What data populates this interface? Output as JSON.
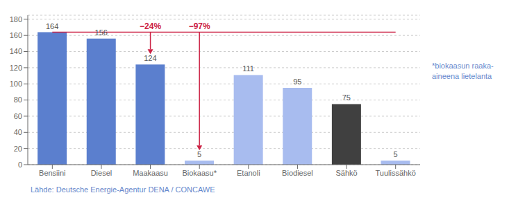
{
  "chart_data": {
    "type": "bar",
    "categories": [
      "Bensiini",
      "Diesel",
      "Maakaasu",
      "Biokaasu*",
      "Etanoli",
      "Biodiesel",
      "Sähkö",
      "Tuulissähkö"
    ],
    "values": [
      164,
      156,
      124,
      5,
      111,
      95,
      75,
      5
    ],
    "colors": [
      "#5b7fce",
      "#5b7fce",
      "#5b7fce",
      "#a8bcef",
      "#a8bcef",
      "#a8bcef",
      "#404040",
      "#a8bcef"
    ],
    "ylim": [
      0,
      185
    ],
    "yticks": [
      0,
      20,
      40,
      60,
      80,
      100,
      120,
      140,
      160,
      180
    ],
    "grid": true,
    "data_labels": true,
    "reference_line": {
      "y": 164,
      "color": "#cc2244"
    },
    "annotations": [
      {
        "text": "−24%",
        "category": "Maakaasu",
        "from": 164,
        "to": 124,
        "color": "#cc2244"
      },
      {
        "text": "−97%",
        "category": "Biokaasu*",
        "from": 164,
        "to": 5,
        "color": "#cc2244"
      }
    ],
    "footnote": "*biokaasun raaka-\naineena lietelanta",
    "source": "Lähde: Deutsche Energie-Agentur DENA / CONCAWE"
  }
}
